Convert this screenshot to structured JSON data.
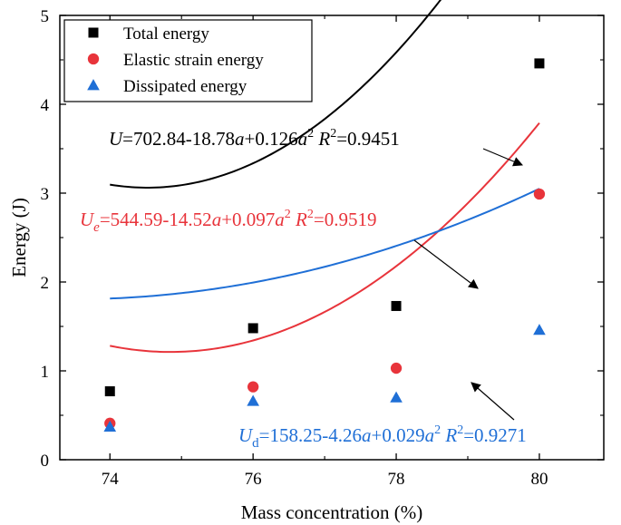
{
  "chart_data": {
    "type": "scatter",
    "xlabel": "Mass concentration (%)",
    "ylabel": "Energy (J)",
    "xlim": [
      73.3,
      80.9
    ],
    "ylim": [
      0,
      5
    ],
    "xticks": [
      74,
      76,
      78,
      80
    ],
    "yticks": [
      0,
      1,
      2,
      3,
      4,
      5
    ],
    "grid": false,
    "legend_position": "top-left",
    "x": [
      74,
      76,
      78,
      80
    ],
    "series": [
      {
        "name": "Total energy",
        "marker": "square",
        "color": "#000000",
        "values": [
          0.77,
          1.48,
          1.73,
          4.46
        ],
        "fit": {
          "type": "quadratic",
          "c0": 702.84,
          "c1": -18.78,
          "c2": 0.126,
          "r2": 0.9451
        }
      },
      {
        "name": "Elastic strain energy",
        "marker": "circle",
        "color": "#e8343b",
        "values": [
          0.41,
          0.82,
          1.03,
          2.99
        ],
        "fit": {
          "type": "quadratic",
          "c0": 544.59,
          "c1": -14.52,
          "c2": 0.097,
          "r2": 0.9519
        }
      },
      {
        "name": "Dissipated energy",
        "marker": "triangle",
        "color": "#1f6fd6",
        "values": [
          0.37,
          0.66,
          0.7,
          1.46
        ],
        "fit": {
          "type": "quadratic",
          "c0": 158.25,
          "c1": -4.26,
          "c2": 0.029,
          "r2": 0.9271
        }
      }
    ],
    "annotations": [
      {
        "color": "#000000",
        "parts": [
          {
            "t": "U",
            "s": "i"
          },
          {
            "t": "=702.84-18.78",
            "s": "n"
          },
          {
            "t": "a",
            "s": "i"
          },
          {
            "t": "+0.126",
            "s": "n"
          },
          {
            "t": "a",
            "s": "i"
          },
          {
            "t": "2",
            "s": "sup"
          },
          {
            "t": "  ",
            "s": "n"
          },
          {
            "t": "R",
            "s": "i"
          },
          {
            "t": "2",
            "s": "sup"
          },
          {
            "t": "=0.9451",
            "s": "n"
          }
        ]
      },
      {
        "color": "#e8343b",
        "parts": [
          {
            "t": "U",
            "s": "i"
          },
          {
            "t": "e",
            "s": "isub"
          },
          {
            "t": "=544.59-14.52",
            "s": "n"
          },
          {
            "t": "a",
            "s": "i"
          },
          {
            "t": "+0.097",
            "s": "n"
          },
          {
            "t": "a",
            "s": "i"
          },
          {
            "t": "2",
            "s": "sup"
          },
          {
            "t": "  ",
            "s": "n"
          },
          {
            "t": "R",
            "s": "i"
          },
          {
            "t": "2",
            "s": "sup"
          },
          {
            "t": "=0.9519",
            "s": "n"
          }
        ]
      },
      {
        "color": "#1f6fd6",
        "parts": [
          {
            "t": "U",
            "s": "i"
          },
          {
            "t": "d",
            "s": "sub"
          },
          {
            "t": "=158.25-4.26",
            "s": "n"
          },
          {
            "t": "a",
            "s": "i"
          },
          {
            "t": "+0.029",
            "s": "n"
          },
          {
            "t": "a",
            "s": "i"
          },
          {
            "t": "2",
            "s": "sup"
          },
          {
            "t": "  ",
            "s": "n"
          },
          {
            "t": "R",
            "s": "i"
          },
          {
            "t": "2",
            "s": "sup"
          },
          {
            "t": "=0.9271",
            "s": "n"
          }
        ]
      }
    ]
  }
}
